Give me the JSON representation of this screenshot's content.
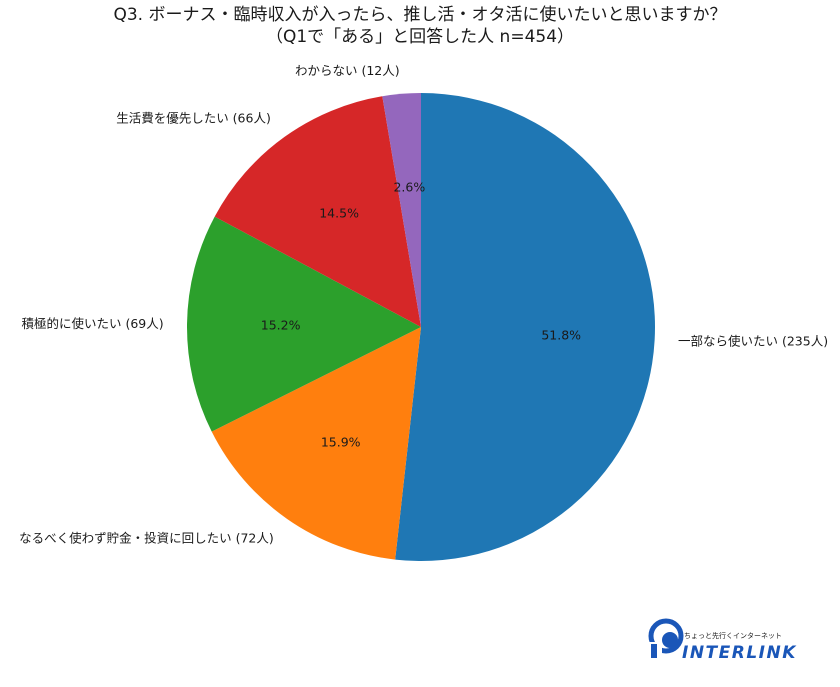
{
  "chart_data": {
    "type": "pie",
    "title_line1": "Q3. ボーナス・臨時収入が入ったら、推し活・オタ活に使いたいと思いますか？",
    "title_line2": "（Q1で「ある」と回答した人 n=454）",
    "start_angle": "12 o'clock",
    "direction": "clockwise",
    "slices": [
      {
        "label": "一部なら使いたい (235人)",
        "count": 235,
        "value": 51.8,
        "pct_label": "51.8%",
        "color": "#1f77b4"
      },
      {
        "label": "なるべく使わず貯金・投資に回したい (72人)",
        "count": 72,
        "value": 15.9,
        "pct_label": "15.9%",
        "color": "#ff7f0e"
      },
      {
        "label": "積極的に使いたい (69人)",
        "count": 69,
        "value": 15.2,
        "pct_label": "15.2%",
        "color": "#2ca02c"
      },
      {
        "label": "生活費を優先したい (66人)",
        "count": 66,
        "value": 14.5,
        "pct_label": "14.5%",
        "color": "#d62728"
      },
      {
        "label": "わからない (12人)",
        "count": 12,
        "value": 2.6,
        "pct_label": "2.6%",
        "color": "#9467bd"
      }
    ]
  },
  "logo": {
    "tagline": "ちょっと先行くインターネット",
    "wordmark": "INTERLINK",
    "color": "#1a56b8"
  }
}
